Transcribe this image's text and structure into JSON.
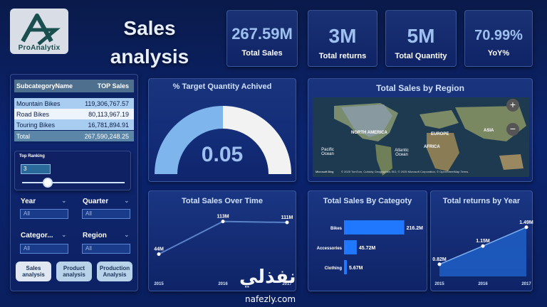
{
  "logo": {
    "text": "ProAnalytix"
  },
  "page_title": "Sales analysis",
  "kpis": [
    {
      "value": "267.59M",
      "label": "Total Sales"
    },
    {
      "value": "3M",
      "label": "Total returns"
    },
    {
      "value": "5M",
      "label": "Total Quantity"
    },
    {
      "value": "70.99%",
      "label": "YoY%"
    }
  ],
  "table": {
    "headers": [
      "SubcategoryName",
      "TOP Sales"
    ],
    "rows": [
      {
        "name": "Mountain Bikes",
        "value": "119,306,767.57"
      },
      {
        "name": "Road Bikes",
        "value": "80,113,967.19"
      },
      {
        "name": "Touring Bikes",
        "value": "16,781,894.91"
      }
    ],
    "total": {
      "name": "Total",
      "value": "267,590,248.25"
    }
  },
  "top_ranking": {
    "label": "Top Ranking",
    "value": "3",
    "slider_fraction": 0.25
  },
  "slicers": {
    "year": {
      "label": "Year",
      "value": "All"
    },
    "quarter": {
      "label": "Quarter",
      "value": "All"
    },
    "category": {
      "label": "Categor...",
      "value": "All"
    },
    "region": {
      "label": "Region",
      "value": "All"
    }
  },
  "nav_buttons": [
    {
      "label": "Sales analysis"
    },
    {
      "label": "Product analysis"
    },
    {
      "label": "Production Analysis"
    }
  ],
  "gauge": {
    "title": "% Target Quantity Achived",
    "value_text": "0.05",
    "fraction": 0.5
  },
  "map": {
    "title": "Total Sales by Region",
    "labels": [
      "NORTH AMERICA",
      "EUROPE",
      "ASIA",
      "AFRICA",
      "Pacific Ocean",
      "Atlantic Ocean"
    ],
    "attribution": "© 2025 TomTom, Cubicity Geographics SIO, © 2025 Microsoft Corporation, © OpenStreetMap  Terms",
    "brand": "Microsoft Bing",
    "zoom_in": "+",
    "zoom_out": "−"
  },
  "colors": {
    "accent": "#5a9cf0",
    "bar": "#1f78ff",
    "gauge_fill": "#7db5ec",
    "gauge_rest": "#f2f2f2"
  },
  "chart_data": [
    {
      "type": "line",
      "title": "Total Sales Over Time",
      "x": [
        "2015",
        "2016",
        "2017"
      ],
      "values": [
        44,
        113,
        111
      ],
      "data_labels": [
        "44M",
        "113M",
        "111M"
      ]
    },
    {
      "type": "bar",
      "title": "Total Sales By Categoty",
      "categories": [
        "Bikes",
        "Accessories",
        "Clothing"
      ],
      "values": [
        216.2,
        45.72,
        5.67
      ],
      "data_labels": [
        "216.2M",
        "45.72M",
        "5.67M"
      ]
    },
    {
      "type": "area",
      "title": "Total returns by Year",
      "x": [
        "2015",
        "2016",
        "2017"
      ],
      "values": [
        0.82,
        1.15,
        1.49
      ],
      "data_labels": [
        "0.82M",
        "1.15M",
        "1.49M"
      ]
    }
  ],
  "watermark": {
    "arabic": "نفذلي",
    "latin": "nafezly.com"
  }
}
